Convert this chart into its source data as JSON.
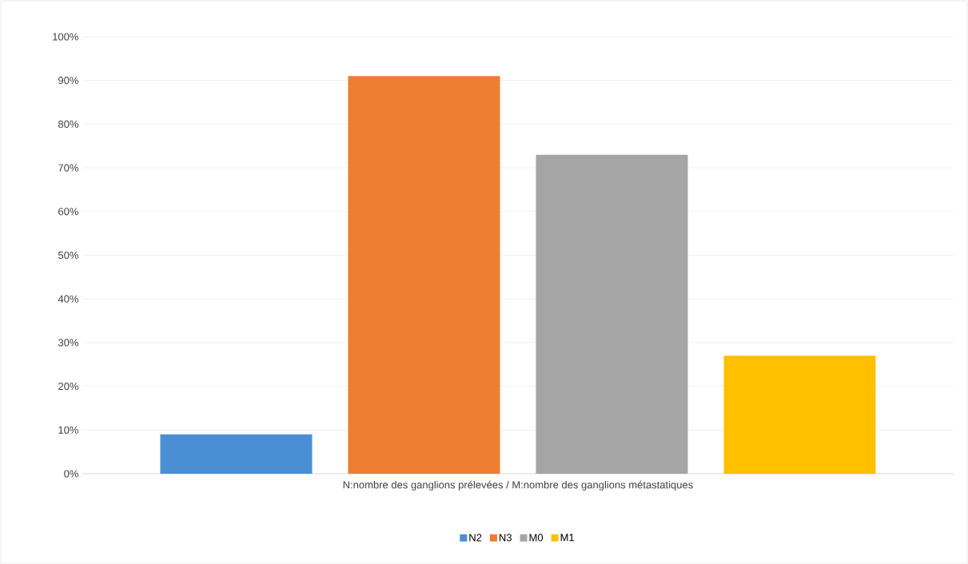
{
  "chart_data": {
    "type": "bar",
    "categories": [
      "N:nombre des ganglions prélevées / M:nombre des ganglions métastatiques"
    ],
    "series": [
      {
        "name": "N2",
        "color": "#4a8fd4",
        "values": [
          9
        ]
      },
      {
        "name": "N3",
        "color": "#ed7d31",
        "values": [
          91
        ]
      },
      {
        "name": "M0",
        "color": "#a5a5a5",
        "values": [
          73
        ]
      },
      {
        "name": "M1",
        "color": "#ffc000",
        "values": [
          27
        ]
      }
    ],
    "ylim": [
      0,
      100
    ],
    "yticks": [
      {
        "value": 0,
        "label": "0%"
      },
      {
        "value": 10,
        "label": "10%"
      },
      {
        "value": 20,
        "label": "20%"
      },
      {
        "value": 30,
        "label": "30%"
      },
      {
        "value": 40,
        "label": "40%"
      },
      {
        "value": 50,
        "label": "50%"
      },
      {
        "value": 60,
        "label": "60%"
      },
      {
        "value": 70,
        "label": "70%"
      },
      {
        "value": 80,
        "label": "80%"
      },
      {
        "value": 90,
        "label": "90%"
      },
      {
        "value": 100,
        "label": "100%"
      }
    ],
    "grid": "y",
    "legend": "bottom"
  }
}
